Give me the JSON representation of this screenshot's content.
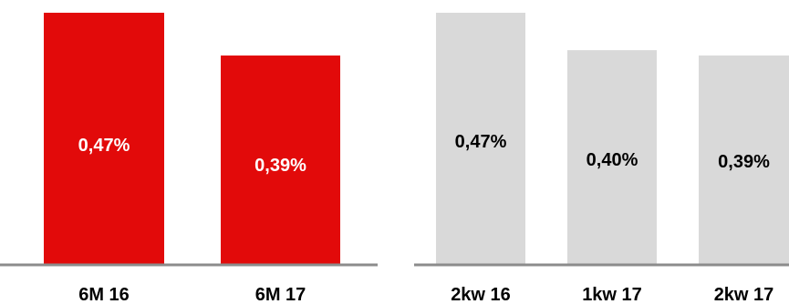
{
  "chart_data": [
    {
      "type": "bar",
      "categories": [
        "6M 16",
        "6M 17"
      ],
      "values": [
        0.47,
        0.39
      ],
      "value_labels": [
        "0,47%",
        "0,39%"
      ],
      "ylim": [
        0,
        0.47
      ],
      "bar_color": "#e20a0a",
      "label_color": "#ffffff",
      "axis_color": "#8c8c8c",
      "grid": false
    },
    {
      "type": "bar",
      "categories": [
        "2kw 16",
        "1kw 17",
        "2kw 17"
      ],
      "values": [
        0.47,
        0.4,
        0.39
      ],
      "value_labels": [
        "0,47%",
        "0,40%",
        "0,39%"
      ],
      "ylim": [
        0,
        0.47
      ],
      "bar_color": "#d9d9d9",
      "label_color": "#000000",
      "axis_color": "#8c8c8c",
      "grid": false
    }
  ]
}
